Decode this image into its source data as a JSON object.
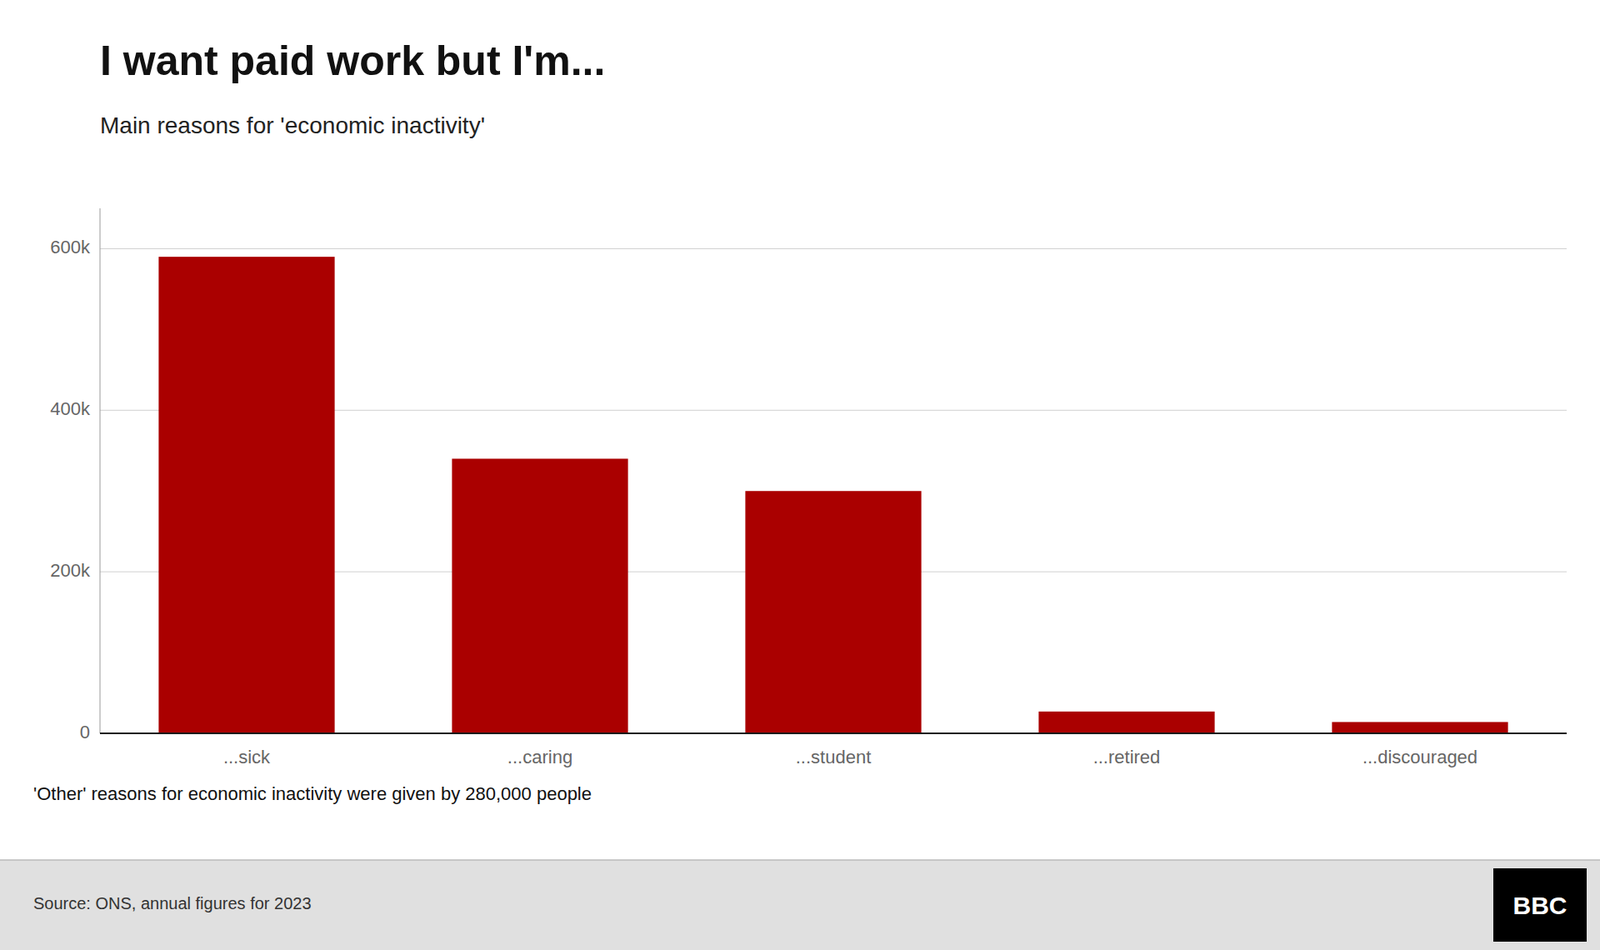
{
  "chart_data": {
    "type": "bar",
    "title": "I want paid work but I'm...",
    "subtitle": "Main reasons for 'economic inactivity'",
    "categories": [
      "...sick",
      "...caring",
      "...student",
      "...retired",
      "...discouraged"
    ],
    "values": [
      590000,
      340000,
      300000,
      27000,
      14000
    ],
    "color": "#aa0000",
    "ylim": [
      0,
      650000
    ],
    "yticks": [
      0,
      {
        "value": 200000,
        "label": "200k"
      },
      {
        "value": 400000,
        "label": "400k"
      },
      {
        "value": 600000,
        "label": "600k"
      }
    ],
    "grid": true,
    "footnote": "'Other' reasons for economic inactivity were given by 280,000 people",
    "source": "Source: ONS, annual figures for 2023",
    "logo": "BBC"
  }
}
